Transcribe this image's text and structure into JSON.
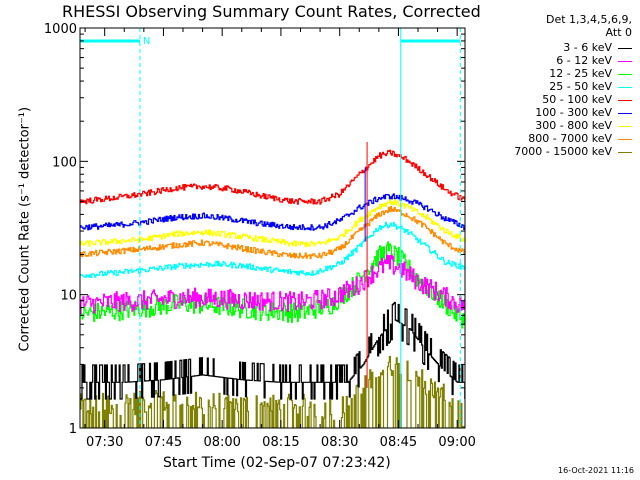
{
  "chart_data": {
    "type": "line",
    "title": "RHESSI Observing Summary Count Rates, Corrected",
    "xlabel": "Start Time (02-Sep-07 07:23:42)",
    "ylabel": "Corrected Count Rate (s⁻¹ detector⁻¹)",
    "y_scale": "log",
    "ylim": [
      1,
      1000
    ],
    "xlim_minutes": [
      443.7,
      542
    ],
    "x_tick_labels": [
      "07:30",
      "07:45",
      "08:00",
      "08:15",
      "08:30",
      "08:45",
      "09:00"
    ],
    "x_tick_minutes": [
      450,
      465,
      480,
      495,
      510,
      525,
      540
    ],
    "y_tick_labels": [
      "1",
      "10",
      "100",
      "1000"
    ],
    "y_tick_values": [
      1,
      10,
      100,
      1000
    ],
    "legend_header": [
      "Det 1,3,4,5,6,9,",
      "Att 0"
    ],
    "night_marker": "N",
    "footer_timestamp": "16-Oct-2021 11:16",
    "grid": false,
    "legend_placement": "right",
    "vertical_markers": [
      {
        "minute": 443.7,
        "style": "solid"
      },
      {
        "minute": 459,
        "style": "dashed"
      },
      {
        "minute": 525.6,
        "style": "solid"
      },
      {
        "minute": 540.8,
        "style": "dashed"
      }
    ],
    "night_bars": [
      [
        443.7,
        459
      ],
      [
        525.6,
        540.8
      ]
    ],
    "series": [
      {
        "name": "3 - 6 keV",
        "color": "#000000",
        "style": "stepnoise",
        "points": [
          [
            444,
            2.2
          ],
          [
            455,
            2.2
          ],
          [
            465,
            2.3
          ],
          [
            475,
            2.5
          ],
          [
            485,
            2.3
          ],
          [
            495,
            2.2
          ],
          [
            505,
            2.2
          ],
          [
            512,
            2.2
          ],
          [
            516,
            3.0
          ],
          [
            520,
            4.8
          ],
          [
            524,
            6.5
          ],
          [
            528,
            5.5
          ],
          [
            532,
            3.8
          ],
          [
            536,
            2.8
          ],
          [
            540,
            2.2
          ],
          [
            542,
            2.2
          ]
        ]
      },
      {
        "name": "6 - 12 keV",
        "color": "#ff00ff",
        "style": "noisy",
        "points": [
          [
            444,
            8.5
          ],
          [
            452,
            8.8
          ],
          [
            460,
            9.0
          ],
          [
            470,
            9.5
          ],
          [
            480,
            9.3
          ],
          [
            490,
            9.0
          ],
          [
            500,
            8.8
          ],
          [
            508,
            9.5
          ],
          [
            514,
            11.5
          ],
          [
            519,
            15
          ],
          [
            522,
            17
          ],
          [
            525,
            16
          ],
          [
            530,
            12.5
          ],
          [
            536,
            10
          ],
          [
            540,
            8.5
          ],
          [
            542,
            8.3
          ]
        ]
      },
      {
        "name": "12 - 25 keV",
        "color": "#00ff00",
        "style": "noisy",
        "points": [
          [
            444,
            7.2
          ],
          [
            452,
            7.5
          ],
          [
            460,
            8.0
          ],
          [
            470,
            8.6
          ],
          [
            480,
            8.2
          ],
          [
            490,
            7.6
          ],
          [
            500,
            7.3
          ],
          [
            508,
            8.5
          ],
          [
            514,
            12
          ],
          [
            519,
            18.5
          ],
          [
            522,
            21.5
          ],
          [
            525,
            19
          ],
          [
            530,
            13
          ],
          [
            536,
            9
          ],
          [
            540,
            7
          ],
          [
            542,
            6.5
          ]
        ]
      },
      {
        "name": "25 - 50 keV",
        "color": "#00ffff",
        "style": "normal",
        "points": [
          [
            444,
            14
          ],
          [
            452,
            14.5
          ],
          [
            460,
            15.3
          ],
          [
            470,
            16.5
          ],
          [
            478,
            17
          ],
          [
            485,
            16.5
          ],
          [
            495,
            15
          ],
          [
            503,
            14.5
          ],
          [
            510,
            17
          ],
          [
            515,
            23
          ],
          [
            520,
            32
          ],
          [
            523,
            34
          ],
          [
            527,
            30
          ],
          [
            532,
            23
          ],
          [
            537,
            17.5
          ],
          [
            542,
            16
          ]
        ]
      },
      {
        "name": "50 - 100 keV",
        "color": "#ff0000",
        "style": "normal",
        "points": [
          [
            444,
            50
          ],
          [
            452,
            53
          ],
          [
            460,
            57
          ],
          [
            468,
            63
          ],
          [
            475,
            65
          ],
          [
            482,
            62
          ],
          [
            490,
            55
          ],
          [
            498,
            50
          ],
          [
            505,
            50
          ],
          [
            510,
            57
          ],
          [
            515,
            80
          ],
          [
            520,
            110
          ],
          [
            523,
            116
          ],
          [
            527,
            103
          ],
          [
            532,
            80
          ],
          [
            537,
            61
          ],
          [
            542,
            51
          ]
        ]
      },
      {
        "name": "100 - 300 keV",
        "color": "#0000ff",
        "style": "normal",
        "points": [
          [
            444,
            32
          ],
          [
            452,
            33
          ],
          [
            460,
            35
          ],
          [
            468,
            38
          ],
          [
            475,
            39
          ],
          [
            482,
            37
          ],
          [
            490,
            34
          ],
          [
            498,
            32
          ],
          [
            505,
            32
          ],
          [
            510,
            36
          ],
          [
            515,
            45
          ],
          [
            520,
            53
          ],
          [
            523,
            55
          ],
          [
            527,
            52
          ],
          [
            532,
            45
          ],
          [
            537,
            37
          ],
          [
            542,
            32
          ]
        ]
      },
      {
        "name": "300 - 800 keV",
        "color": "#ffff00",
        "style": "normal",
        "points": [
          [
            444,
            24
          ],
          [
            452,
            25
          ],
          [
            460,
            26
          ],
          [
            468,
            28.5
          ],
          [
            475,
            29.5
          ],
          [
            482,
            28
          ],
          [
            490,
            26
          ],
          [
            498,
            24
          ],
          [
            505,
            24
          ],
          [
            510,
            27
          ],
          [
            515,
            36
          ],
          [
            520,
            46
          ],
          [
            523,
            50
          ],
          [
            527,
            46
          ],
          [
            532,
            38
          ],
          [
            537,
            30
          ],
          [
            542,
            25.5
          ]
        ]
      },
      {
        "name": "800 - 7000 keV",
        "color": "#ff8c00",
        "style": "normal",
        "points": [
          [
            444,
            20
          ],
          [
            452,
            21
          ],
          [
            460,
            22
          ],
          [
            468,
            23.5
          ],
          [
            475,
            24.5
          ],
          [
            482,
            23
          ],
          [
            490,
            21
          ],
          [
            498,
            19.5
          ],
          [
            505,
            19.5
          ],
          [
            510,
            22
          ],
          [
            515,
            30
          ],
          [
            520,
            40
          ],
          [
            523,
            44
          ],
          [
            527,
            40
          ],
          [
            532,
            32
          ],
          [
            537,
            24
          ],
          [
            542,
            20.5
          ]
        ]
      },
      {
        "name": "7000 - 15000 keV",
        "color": "#808000",
        "style": "binary",
        "points": [
          [
            444,
            1.5
          ],
          [
            465,
            1.6
          ],
          [
            485,
            1.5
          ],
          [
            500,
            1.5
          ],
          [
            510,
            1.4
          ],
          [
            516,
            2.0
          ],
          [
            520,
            2.8
          ],
          [
            524,
            3.0
          ],
          [
            528,
            2.8
          ],
          [
            532,
            2.2
          ],
          [
            540,
            1.5
          ],
          [
            542,
            1.2
          ]
        ]
      }
    ]
  }
}
